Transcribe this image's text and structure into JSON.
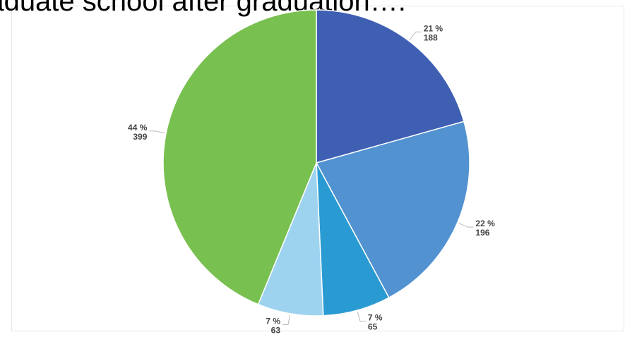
{
  "title": "raduate school after graduation….",
  "chart_data": {
    "type": "pie",
    "start_angle_deg": 0,
    "direction": "clockwise",
    "slices": [
      {
        "value": 188,
        "percent_label": "21 %",
        "value_label": "188",
        "color": "#3f5fb3"
      },
      {
        "value": 196,
        "percent_label": "22 %",
        "value_label": "196",
        "color": "#5292d0"
      },
      {
        "value": 65,
        "percent_label": "7 %",
        "value_label": "65",
        "color": "#2a9bd2"
      },
      {
        "value": 63,
        "percent_label": "7 %",
        "value_label": "63",
        "color": "#9ed3ef"
      },
      {
        "value": 399,
        "percent_label": "44 %",
        "value_label": "399",
        "color": "#78c04f"
      }
    ],
    "data_labels": "outside with leader lines",
    "legend": "none"
  }
}
